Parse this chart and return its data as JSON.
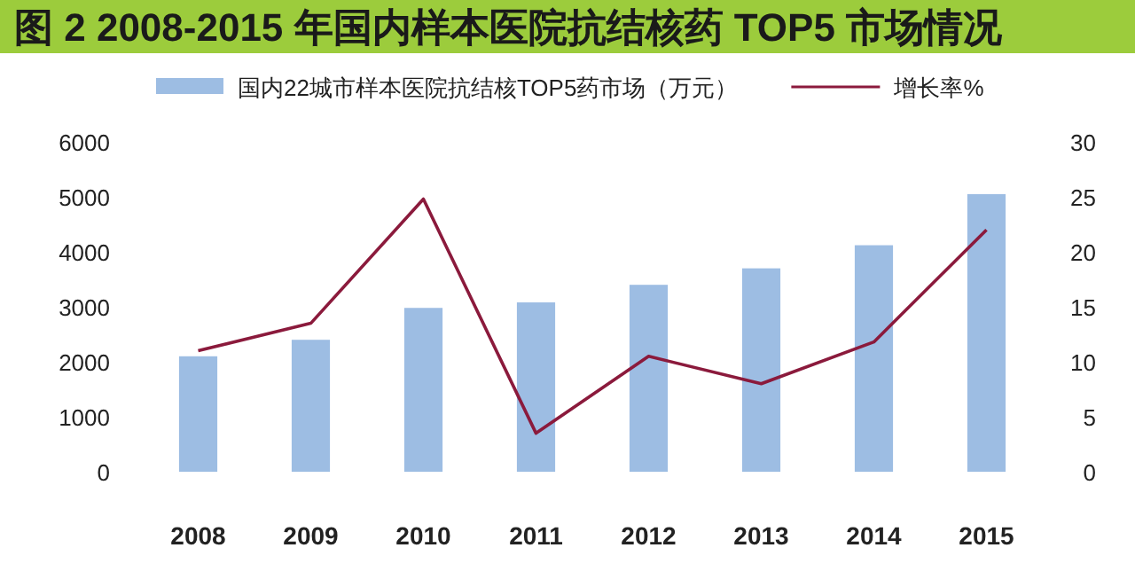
{
  "chart_data": {
    "type": "bar",
    "title": "图 2  2008-2015 年国内样本医院抗结核药 TOP5 市场情况",
    "categories": [
      "2008",
      "2009",
      "2010",
      "2011",
      "2012",
      "2013",
      "2014",
      "2015"
    ],
    "series": [
      {
        "name": "国内22城市样本医院抗结核TOP5药市场（万元）",
        "color": "#9dbde3",
        "values": [
          2100,
          2400,
          2980,
          3080,
          3400,
          3700,
          4120,
          5050
        ]
      },
      {
        "name": "增长率%",
        "type": "line",
        "axis": "y2",
        "color": "#8b1a3c",
        "values": [
          11,
          13.5,
          24.8,
          3.5,
          10.5,
          8,
          11.8,
          22
        ]
      }
    ],
    "ylim": [
      0,
      6000
    ],
    "yticks": [
      0,
      1000,
      2000,
      3000,
      4000,
      5000,
      6000
    ],
    "y2lim": [
      0,
      30
    ],
    "y2ticks": [
      0,
      5,
      10,
      15,
      20,
      25,
      30
    ],
    "legend": "top",
    "grid": false,
    "marker": "none"
  }
}
